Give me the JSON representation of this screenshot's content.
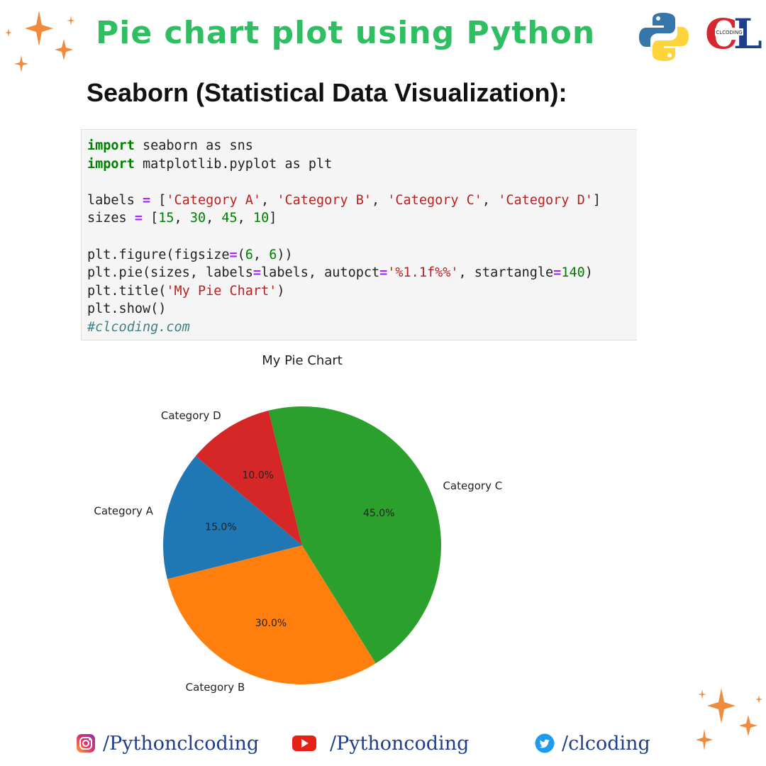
{
  "header": {
    "banner_title": "Pie chart plot using Python",
    "logo_small_text": "CLCODING"
  },
  "heading": "Seaborn (Statistical Data Visualization):",
  "code": {
    "lines": [
      "import seaborn as sns",
      "import matplotlib.pyplot as plt",
      "",
      "labels = ['Category A', 'Category B', 'Category C', 'Category D']",
      "sizes = [15, 30, 45, 10]",
      "",
      "plt.figure(figsize=(6, 6))",
      "plt.pie(sizes, labels=labels, autopct='%1.1f%%', startangle=140)",
      "plt.title('My Pie Chart')",
      "plt.show()",
      "#clcoding.com"
    ]
  },
  "chart_data": {
    "type": "pie",
    "title": "My Pie Chart",
    "categories": [
      "Category A",
      "Category B",
      "Category C",
      "Category D"
    ],
    "values": [
      15,
      30,
      45,
      10
    ],
    "percent_labels": [
      "15.0%",
      "30.0%",
      "45.0%",
      "10.0%"
    ],
    "colors": [
      "#1f77b4",
      "#ff7f0e",
      "#2ca02c",
      "#d62728"
    ],
    "startangle": 140
  },
  "footer": {
    "instagram": "/Pythonclcoding",
    "youtube": "/Pythoncoding",
    "twitter": "/clcoding"
  },
  "colors": {
    "banner": "#2fbf62",
    "handle": "#1f3f8a",
    "sparkle": "#f08a3c"
  }
}
